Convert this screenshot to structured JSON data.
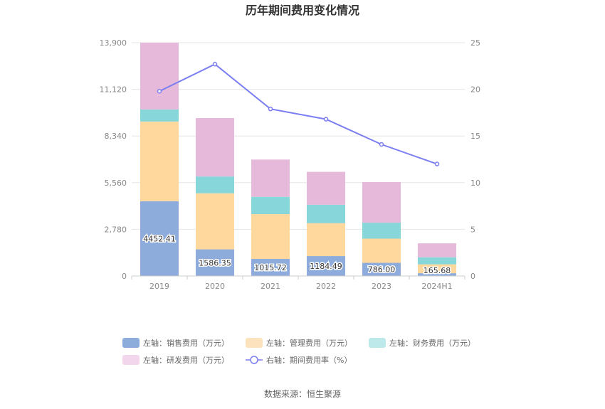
{
  "chart_data": {
    "type": "bar",
    "title": "历年期间费用变化情况",
    "categories": [
      "2019",
      "2020",
      "2021",
      "2022",
      "2023",
      "2024H1"
    ],
    "left_axis": {
      "ylim": [
        0,
        13900
      ],
      "ticks": [
        "0",
        "2,780",
        "5,560",
        "8,340",
        "11,120",
        "13,900"
      ],
      "tick_values": [
        0,
        2780,
        5560,
        8340,
        11120,
        13900
      ]
    },
    "right_axis": {
      "ylim": [
        0,
        25
      ],
      "ticks": [
        "0",
        "5",
        "10",
        "15",
        "20",
        "25"
      ],
      "tick_values": [
        0,
        5,
        10,
        15,
        20,
        25
      ]
    },
    "series": [
      {
        "name": "左轴：销售费用（万元）",
        "type": "bar",
        "color": "#8eacdb",
        "values": [
          4452.41,
          1586.35,
          1015.72,
          1184.49,
          786.0,
          165.68
        ],
        "labels": [
          "4452.41",
          "1586.35",
          "1015.72",
          "1184.49",
          "786.00",
          "165.68"
        ]
      },
      {
        "name": "左轴：管理费用（万元）",
        "type": "bar",
        "color": "#fed89c",
        "values": [
          4750,
          3340,
          2670,
          1960,
          1440,
          530
        ]
      },
      {
        "name": "左轴：财务费用（万元）",
        "type": "bar",
        "color": "#86d6da",
        "values": [
          720,
          1000,
          1030,
          1100,
          950,
          420
        ]
      },
      {
        "name": "左轴：研发费用（万元）",
        "type": "bar",
        "color": "#e6b9da",
        "values": [
          3980,
          3480,
          2220,
          1960,
          2420,
          830
        ]
      },
      {
        "name": "右轴：期间费用率（%）",
        "type": "line",
        "color": "#7b7ef0",
        "values": [
          19.8,
          22.7,
          17.9,
          16.8,
          14.1,
          12.0
        ]
      }
    ],
    "legend_position": "bottom",
    "grid": true
  },
  "source": "数据来源：恒生聚源"
}
